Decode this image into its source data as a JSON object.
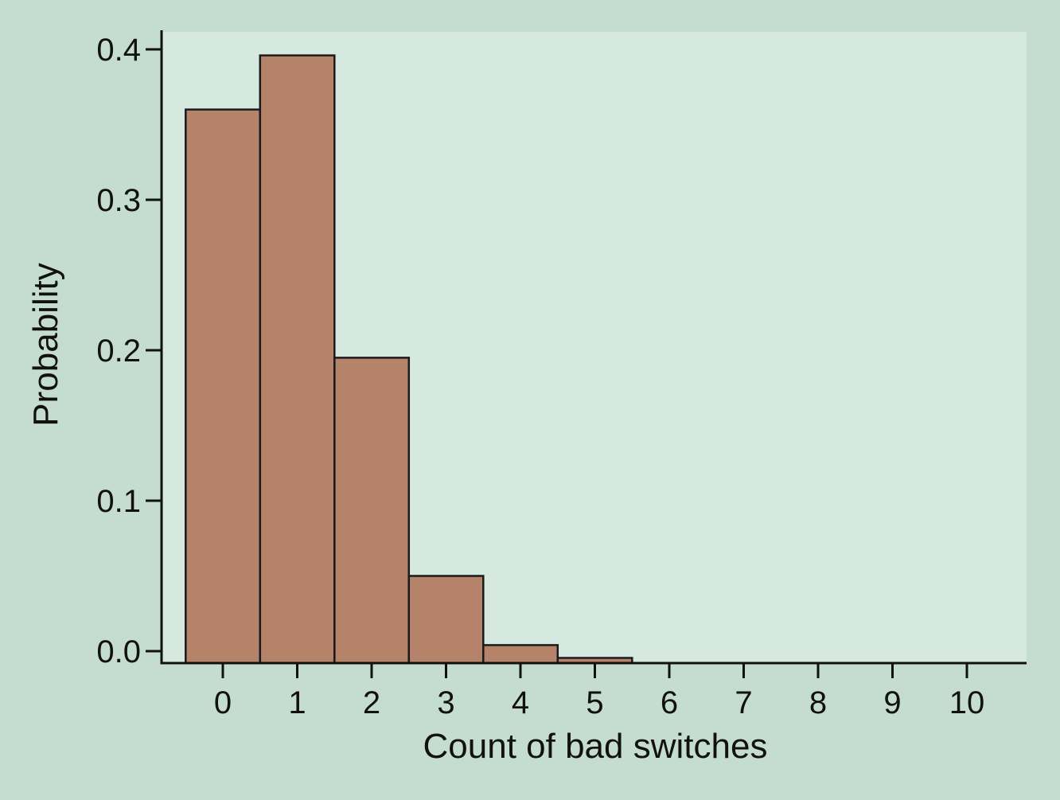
{
  "colors": {
    "outer_background": "#c5ddd1",
    "plot_background": "#d6e9e0",
    "bar_fill": "#b5826a",
    "bar_stroke": "#1a1a1a",
    "axis": "#111111"
  },
  "chart_data": {
    "type": "bar",
    "title": "",
    "xlabel": "Count of bad switches",
    "ylabel": "Probability",
    "categories": [
      "0",
      "1",
      "2",
      "3",
      "4",
      "5",
      "6",
      "7",
      "8",
      "9",
      "10"
    ],
    "values": [
      0.36,
      0.396,
      0.195,
      0.05,
      0.004,
      -0.0045,
      -0.008,
      -0.008,
      -0.008,
      -0.008,
      -0.008
    ],
    "ylim": [
      -0.008,
      0.41
    ],
    "yticks": [
      "0.0",
      "0.1",
      "0.2",
      "0.3",
      "0.4"
    ],
    "ytick_values": [
      0.0,
      0.1,
      0.2,
      0.3,
      0.4
    ],
    "grid": false,
    "legend": "none"
  }
}
